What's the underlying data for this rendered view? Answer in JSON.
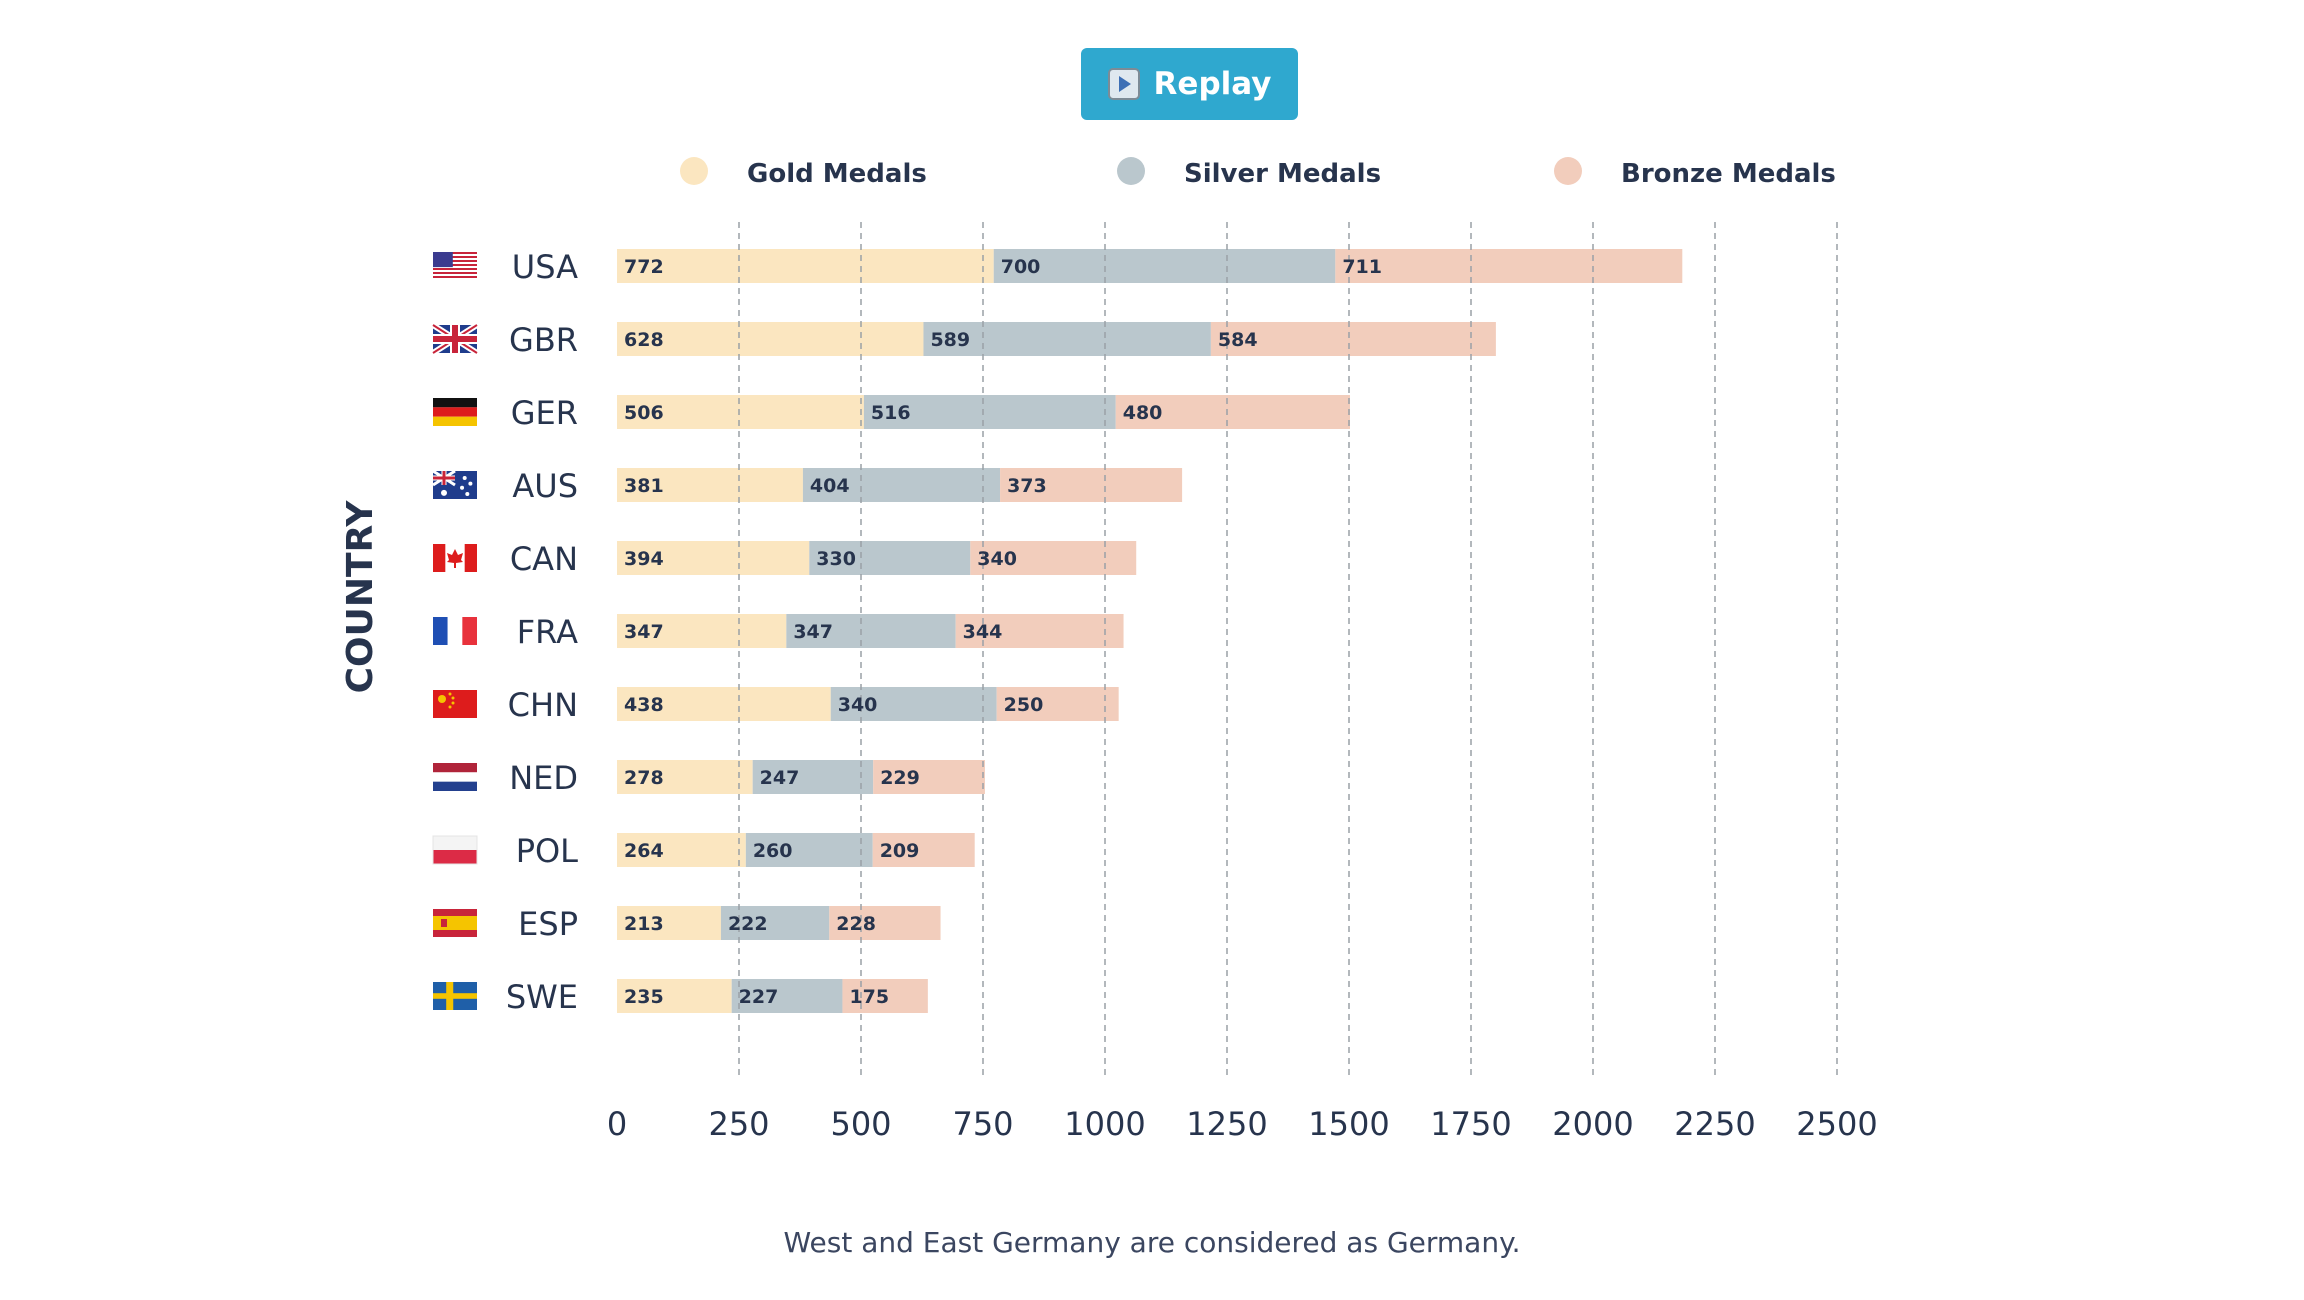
{
  "replay_button": {
    "label": "Replay",
    "icon": "play-icon"
  },
  "footnote": "West and East Germany are considered as Germany.",
  "colors": {
    "gold": "#fbe6c0",
    "silver": "#bac7cd",
    "bronze": "#f2cdbc",
    "text": "#27344d",
    "grid": "#9aa0a6",
    "button": "#2fa8cf"
  },
  "chart_data": {
    "type": "bar",
    "orientation": "horizontal",
    "stacked": true,
    "ylabel": "COUNTRY",
    "xlabel": "",
    "xlim": [
      0,
      2500
    ],
    "xticks": [
      "0",
      "250",
      "500",
      "750",
      "1000",
      "1250",
      "1500",
      "1750",
      "2000",
      "2250",
      "2500"
    ],
    "grid": "vertical dashed",
    "legend_position": "top",
    "categories": [
      "USA",
      "GBR",
      "GER",
      "AUS",
      "CAN",
      "FRA",
      "CHN",
      "NED",
      "POL",
      "ESP",
      "SWE"
    ],
    "flags": [
      "usa-flag-icon",
      "gbr-flag-icon",
      "ger-flag-icon",
      "aus-flag-icon",
      "can-flag-icon",
      "fra-flag-icon",
      "chn-flag-icon",
      "ned-flag-icon",
      "pol-flag-icon",
      "esp-flag-icon",
      "swe-flag-icon"
    ],
    "series": [
      {
        "name": "Gold Medals",
        "color": "#fbe6c0",
        "values": [
          772,
          628,
          506,
          381,
          394,
          347,
          438,
          278,
          264,
          213,
          235
        ]
      },
      {
        "name": "Silver Medals",
        "color": "#bac7cd",
        "values": [
          700,
          589,
          516,
          404,
          330,
          347,
          340,
          247,
          260,
          222,
          227
        ]
      },
      {
        "name": "Bronze Medals",
        "color": "#f2cdbc",
        "values": [
          711,
          584,
          480,
          373,
          340,
          344,
          250,
          229,
          209,
          228,
          175
        ]
      }
    ]
  }
}
